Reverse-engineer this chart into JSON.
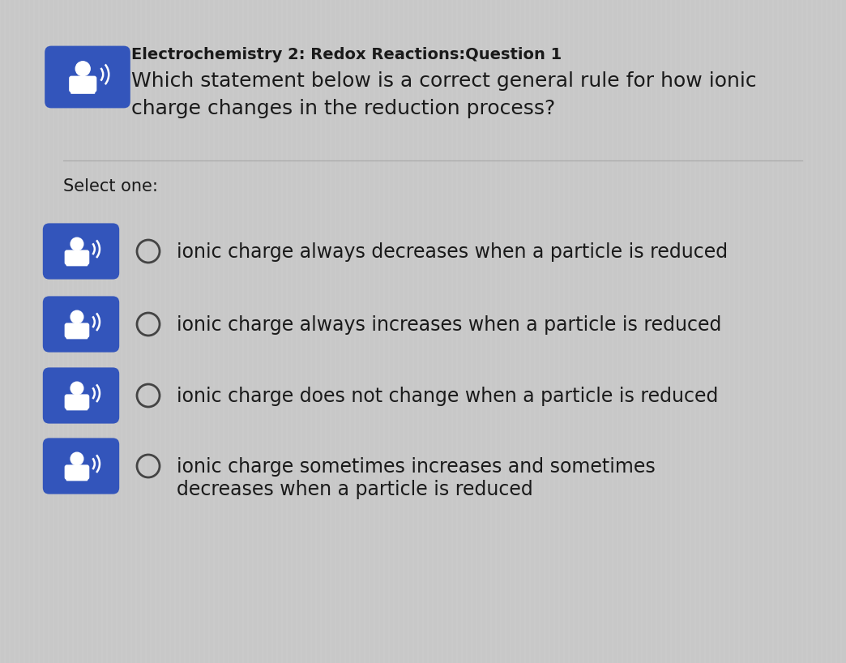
{
  "bg_color": "#c8c8c8",
  "title_bold": "Electrochemistry 2: Redox Reactions:Question 1",
  "title_line2": "Which statement below is a correct general rule for how ionic",
  "title_line3": "charge changes in the reduction process?",
  "select_one_label": "Select one:",
  "options": [
    "ionic charge always decreases when a particle is reduced",
    "ionic charge always increases when a particle is reduced",
    "ionic charge does not change when a particle is reduced",
    [
      "ionic charge sometimes increases and sometimes",
      "decreases when a particle is reduced"
    ]
  ],
  "icon_color": "#3355bb",
  "text_color": "#1a1a1a",
  "radio_color": "#444444",
  "divider_color": "#aaaaaa",
  "title_bold_fontsize": 14,
  "body_fontsize": 18,
  "select_fontsize": 15,
  "option_fontsize": 17
}
